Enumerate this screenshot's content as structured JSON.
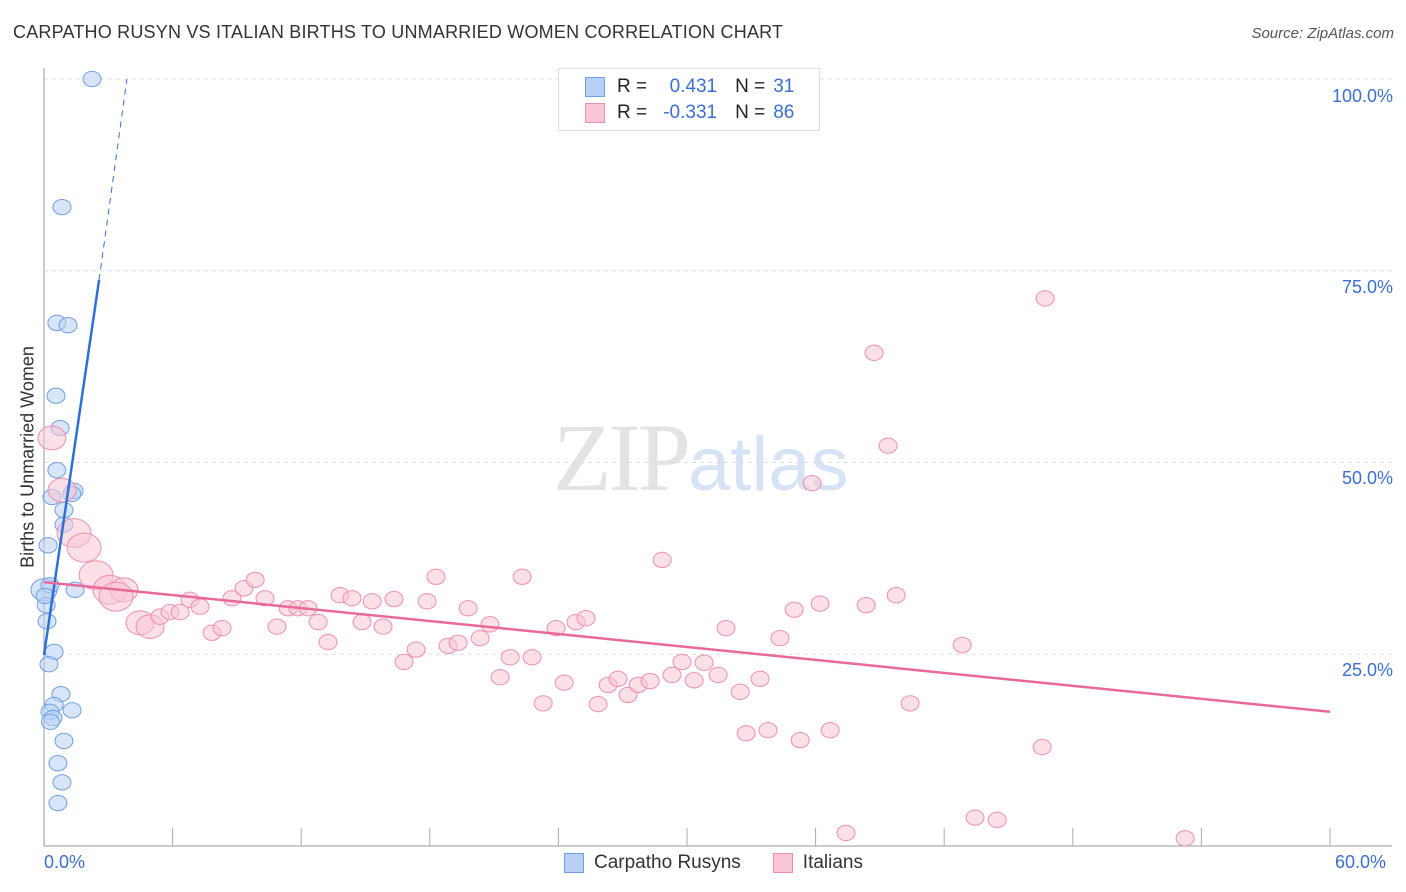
{
  "chart_data": {
    "type": "scatter",
    "title": "CARPATHO RUSYN VS ITALIAN BIRTHS TO UNMARRIED WOMEN CORRELATION CHART",
    "source": "Source: ZipAtlas.com",
    "xlabel": "",
    "ylabel": "Births to Unmarried Women",
    "xlim": [
      0,
      60
    ],
    "ylim": [
      0,
      100
    ],
    "x_tick_labels": [
      "0.0%",
      "60.0%"
    ],
    "y_tick_labels": [
      "100.0%",
      "75.0%",
      "50.0%",
      "25.0%"
    ],
    "y_ticks": [
      100,
      75,
      50,
      25
    ],
    "grid": true,
    "watermark": "ZIPatlas",
    "legend": {
      "placement": "top-center",
      "rows": [
        {
          "r_label": "R =",
          "r": "0.431",
          "n_label": "N =",
          "n": "31"
        },
        {
          "r_label": "R =",
          "r": "-0.331",
          "n_label": "N =",
          "n": "86"
        }
      ]
    },
    "series": [
      {
        "name": "Carpatho Rusyns",
        "color": "#6f9fe6",
        "fill": "#b8d0f3",
        "trend": {
          "x": [
            0,
            2.57
          ],
          "y": [
            24.9,
            73.8
          ],
          "dashed_to": [
            3.87,
            100
          ]
        },
        "points": [
          [
            2.24,
            100
          ],
          [
            0.84,
            83.3
          ],
          [
            0.6,
            68.2
          ],
          [
            1.12,
            67.9
          ],
          [
            0.56,
            58.7
          ],
          [
            0.75,
            54.5
          ],
          [
            0.6,
            49.0
          ],
          [
            1.4,
            46.3
          ],
          [
            1.3,
            45.9
          ],
          [
            0.37,
            45.5
          ],
          [
            0.93,
            43.8
          ],
          [
            0.93,
            41.9
          ],
          [
            0.19,
            39.2
          ],
          [
            0,
            33.4
          ],
          [
            0.28,
            34.0
          ],
          [
            1.45,
            33.4
          ],
          [
            0.1,
            31.4
          ],
          [
            0.14,
            29.3
          ],
          [
            0.47,
            25.3
          ],
          [
            0.23,
            23.7
          ],
          [
            0.79,
            19.8
          ],
          [
            0.47,
            18.4
          ],
          [
            0.28,
            17.5
          ],
          [
            0.42,
            16.7
          ],
          [
            1.31,
            17.7
          ],
          [
            0.93,
            13.7
          ],
          [
            0.65,
            10.8
          ],
          [
            0.84,
            8.3
          ],
          [
            0.65,
            5.6
          ],
          [
            0.05,
            32.6
          ],
          [
            0.3,
            16.2
          ]
        ]
      },
      {
        "name": "Italians",
        "color": "#ef8fae",
        "fill": "#f8c6d6",
        "trend": {
          "x": [
            0,
            60
          ],
          "y": [
            34.4,
            17.5
          ]
        },
        "points": [
          [
            0.37,
            53.2
          ],
          [
            0.84,
            46.4
          ],
          [
            1.4,
            40.8
          ],
          [
            1.87,
            38.9
          ],
          [
            2.43,
            35.3
          ],
          [
            3.08,
            33.4
          ],
          [
            3.73,
            33.4
          ],
          [
            3.36,
            32.5
          ],
          [
            4.48,
            29.1
          ],
          [
            4.95,
            28.6
          ],
          [
            5.41,
            29.9
          ],
          [
            5.88,
            30.5
          ],
          [
            6.35,
            30.5
          ],
          [
            6.81,
            32.1
          ],
          [
            7.28,
            31.2
          ],
          [
            7.84,
            27.8
          ],
          [
            8.31,
            28.4
          ],
          [
            8.77,
            32.3
          ],
          [
            9.33,
            33.6
          ],
          [
            9.85,
            34.7
          ],
          [
            10.31,
            32.3
          ],
          [
            10.87,
            28.6
          ],
          [
            11.39,
            31.0
          ],
          [
            11.85,
            31.0
          ],
          [
            12.32,
            31.0
          ],
          [
            12.79,
            29.2
          ],
          [
            13.25,
            26.6
          ],
          [
            13.81,
            32.7
          ],
          [
            14.37,
            32.3
          ],
          [
            14.84,
            29.2
          ],
          [
            15.31,
            31.9
          ],
          [
            15.82,
            28.6
          ],
          [
            16.33,
            32.2
          ],
          [
            16.8,
            24.0
          ],
          [
            17.36,
            25.6
          ],
          [
            17.87,
            31.9
          ],
          [
            18.29,
            35.1
          ],
          [
            18.85,
            26.1
          ],
          [
            19.32,
            26.5
          ],
          [
            19.79,
            31.0
          ],
          [
            20.35,
            27.1
          ],
          [
            20.81,
            28.9
          ],
          [
            21.28,
            22.0
          ],
          [
            21.75,
            24.6
          ],
          [
            22.31,
            35.1
          ],
          [
            22.77,
            24.6
          ],
          [
            23.29,
            18.6
          ],
          [
            23.89,
            28.4
          ],
          [
            24.27,
            21.3
          ],
          [
            24.82,
            29.2
          ],
          [
            25.29,
            29.7
          ],
          [
            25.85,
            18.5
          ],
          [
            26.32,
            21.0
          ],
          [
            26.78,
            21.8
          ],
          [
            27.25,
            19.7
          ],
          [
            27.72,
            21.0
          ],
          [
            28.28,
            21.5
          ],
          [
            28.84,
            37.3
          ],
          [
            29.3,
            22.3
          ],
          [
            29.77,
            24.0
          ],
          [
            30.33,
            21.6
          ],
          [
            30.8,
            23.9
          ],
          [
            31.45,
            22.3
          ],
          [
            31.82,
            28.4
          ],
          [
            32.48,
            20.1
          ],
          [
            32.76,
            14.7
          ],
          [
            33.41,
            21.8
          ],
          [
            33.78,
            15.1
          ],
          [
            34.34,
            27.1
          ],
          [
            35.0,
            30.8
          ],
          [
            35.28,
            13.8
          ],
          [
            35.84,
            47.3
          ],
          [
            36.21,
            31.6
          ],
          [
            36.68,
            15.1
          ],
          [
            37.42,
            1.7
          ],
          [
            38.36,
            31.4
          ],
          [
            38.73,
            64.3
          ],
          [
            39.38,
            52.2
          ],
          [
            39.76,
            32.7
          ],
          [
            40.41,
            18.6
          ],
          [
            42.84,
            26.2
          ],
          [
            43.44,
            3.7
          ],
          [
            44.47,
            3.4
          ],
          [
            46.57,
            12.9
          ],
          [
            46.71,
            71.4
          ],
          [
            53.24,
            1.0
          ]
        ]
      }
    ]
  }
}
